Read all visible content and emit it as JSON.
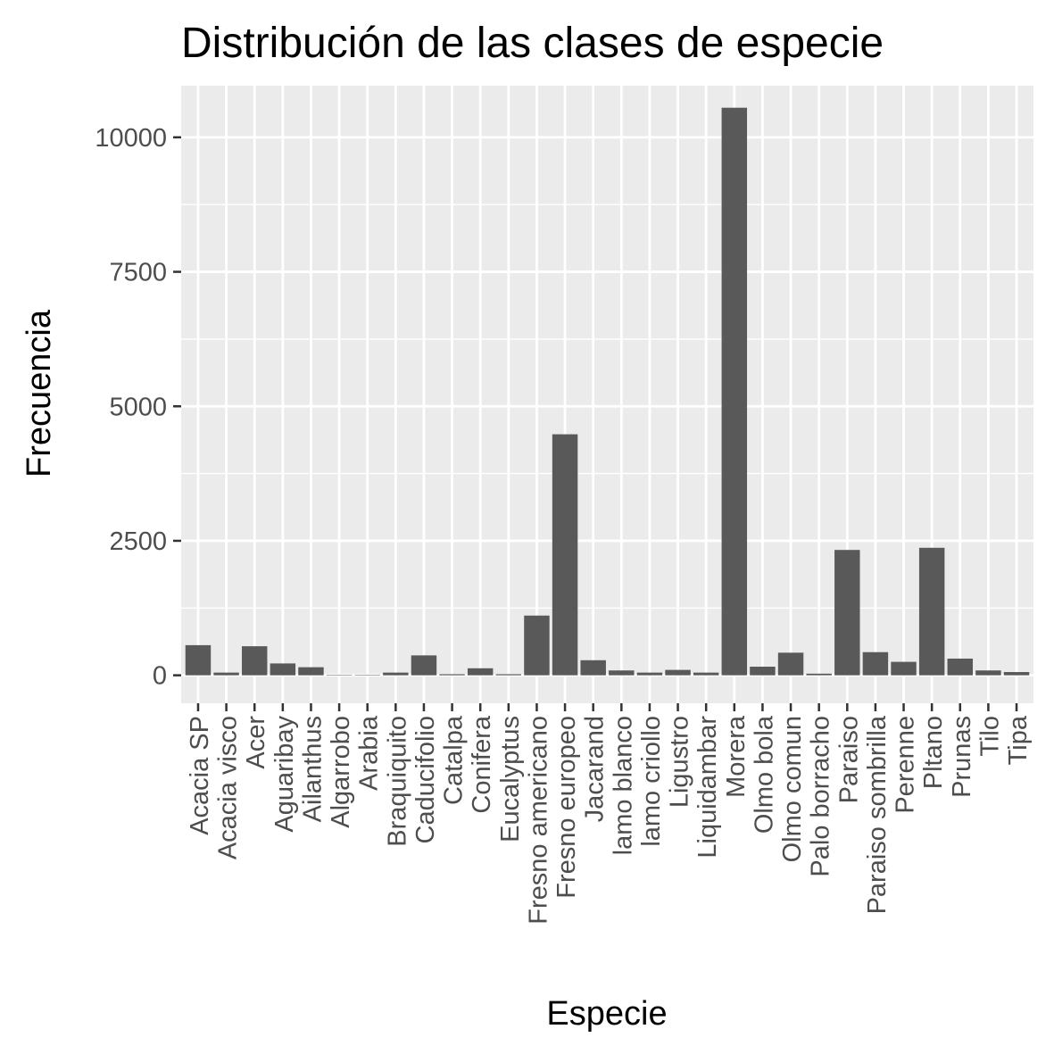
{
  "chart_data": {
    "type": "bar",
    "title": "Distribución de las clases de especie",
    "xlabel": "Especie",
    "ylabel": "Frecuencia",
    "ylim": [
      -520,
      10960
    ],
    "yticks": [
      0,
      2500,
      5000,
      7500,
      10000
    ],
    "ytick_labels": [
      "0",
      "2500",
      "5000",
      "7500",
      "10000"
    ],
    "grid": true,
    "legend": "none",
    "bar_color": "#595959",
    "panel_color": "#ebebeb",
    "categories": [
      "Acacia SP",
      "Acacia visco",
      "Acer",
      "Aguaribay",
      "Ailanthus",
      "Algarrobo",
      "Arabia",
      "Braquiquito",
      "Caducifolio",
      "Catalpa",
      "Conifera",
      "Eucalyptus",
      "Fresno americano",
      "Fresno europeo",
      "Jacarand",
      "lamo blanco",
      "lamo criollo",
      "Ligustro",
      "Liquidambar",
      "Morera",
      "Olmo bola",
      "Olmo comun",
      "Palo borracho",
      "Paraiso",
      "Paraiso sombrilla",
      "Perenne",
      "Pltano",
      "Prunas",
      "Tilo",
      "Tipa"
    ],
    "values": [
      560,
      50,
      540,
      220,
      150,
      5,
      5,
      50,
      370,
      20,
      130,
      20,
      1110,
      4480,
      280,
      90,
      50,
      100,
      50,
      10550,
      160,
      420,
      30,
      2330,
      430,
      250,
      2370,
      310,
      90,
      60
    ]
  }
}
